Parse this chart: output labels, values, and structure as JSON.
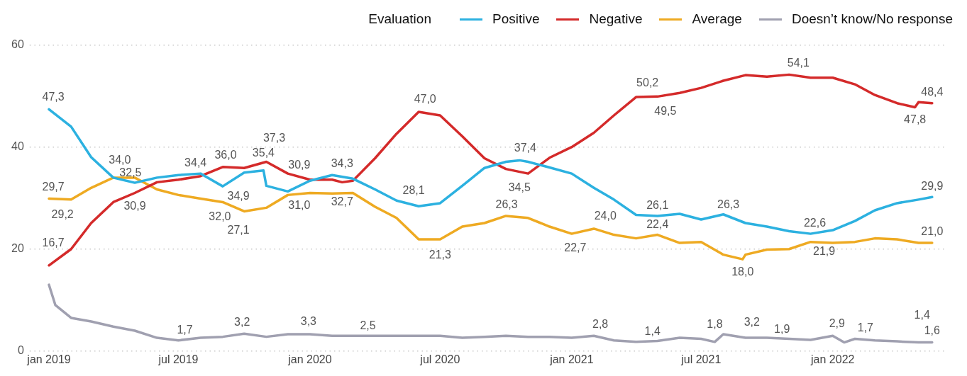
{
  "chart_data": {
    "type": "line",
    "legend_title": "Evaluation",
    "legend": "top right",
    "grid": "y",
    "marker": "none",
    "line_style": "solid",
    "xlim": [
      "2018-12-05",
      "2022-06-10"
    ],
    "xticks": [
      {
        "value": "2019-01-01",
        "label": "jan 2019"
      },
      {
        "value": "2019-07-01",
        "label": "jul 2019"
      },
      {
        "value": "2020-01-01",
        "label": "jan 2020"
      },
      {
        "value": "2020-07-01",
        "label": "jul 2020"
      },
      {
        "value": "2021-01-01",
        "label": "jan 2021"
      },
      {
        "value": "2021-07-01",
        "label": "jul 2021"
      },
      {
        "value": "2022-01-01",
        "label": "jan 2022"
      }
    ],
    "ylim": [
      0,
      60
    ],
    "yticks": [
      0,
      20,
      40,
      60
    ],
    "series": [
      {
        "name": "Positive",
        "color": "#2cb1e0",
        "x": [
          "2019-01",
          "2019-02",
          "2019-03",
          "2019-04",
          "2019-05",
          "2019-06",
          "2019-07",
          "2019-08",
          "2019-09",
          "2019-10",
          "2019-10-28",
          "2019-11",
          "2019-12",
          "2020-01",
          "2020-02",
          "2020-03",
          "2020-04",
          "2020-05",
          "2020-06",
          "2020-07",
          "2020-08",
          "2020-09",
          "2020-10",
          "2020-10-20",
          "2020-11",
          "2020-12",
          "2021-01",
          "2021-02",
          "2021-03",
          "2021-04",
          "2021-05",
          "2021-06",
          "2021-07",
          "2021-08",
          "2021-09",
          "2021-10",
          "2021-11",
          "2021-12",
          "2022-01",
          "2022-02",
          "2022-03",
          "2022-04",
          "2022-05",
          "2022-05-20"
        ],
        "values": [
          47.4,
          44,
          38,
          34,
          33,
          34,
          34.5,
          34.8,
          32.3,
          35,
          35.4,
          32.4,
          31.3,
          33.4,
          34.5,
          33.8,
          31.7,
          29.5,
          28.4,
          29,
          32.4,
          35.9,
          37.1,
          37.4,
          37.1,
          36,
          34.8,
          32,
          29.7,
          26.7,
          26.5,
          26.9,
          25.8,
          26.8,
          25.1,
          24.4,
          23.5,
          23,
          23.7,
          25.5,
          27.6,
          29,
          29.7,
          30.2
        ]
      },
      {
        "name": "Negative",
        "color": "#d42a2a",
        "x": [
          "2019-01",
          "2019-02",
          "2019-03",
          "2019-04",
          "2019-05",
          "2019-06",
          "2019-07",
          "2019-08",
          "2019-09",
          "2019-10",
          "2019-11",
          "2019-12",
          "2020-01",
          "2020-02",
          "2020-02-15",
          "2020-03",
          "2020-04",
          "2020-05",
          "2020-06",
          "2020-07",
          "2020-08",
          "2020-09",
          "2020-10",
          "2020-11",
          "2020-12",
          "2021-01",
          "2021-02",
          "2021-03",
          "2021-04",
          "2021-05",
          "2021-06",
          "2021-07",
          "2021-08",
          "2021-09",
          "2021-10",
          "2021-11",
          "2021-12",
          "2022-01",
          "2022-02",
          "2022-03",
          "2022-04",
          "2022-04-26",
          "2022-05",
          "2022-05-20"
        ],
        "values": [
          16.8,
          20,
          25.1,
          29.2,
          31,
          33.1,
          33.6,
          34.3,
          36.1,
          35.9,
          37.1,
          34.8,
          33.6,
          33.6,
          33.1,
          33.4,
          37.8,
          42.6,
          46.9,
          46.2,
          42.1,
          37.8,
          35.7,
          34.8,
          37.9,
          40,
          42.8,
          46.2,
          49.8,
          49.9,
          50.6,
          51.6,
          53,
          54.1,
          53.8,
          54.2,
          53.6,
          53.6,
          52.3,
          50.2,
          48.6,
          47.8,
          48.8,
          48.6
        ]
      },
      {
        "name": "Average",
        "color": "#eeaa22",
        "x": [
          "2019-01",
          "2019-02",
          "2019-03",
          "2019-04",
          "2019-05",
          "2019-06",
          "2019-07",
          "2019-08",
          "2019-09",
          "2019-10",
          "2019-11",
          "2019-12",
          "2020-01",
          "2020-02",
          "2020-03",
          "2020-04",
          "2020-05",
          "2020-06",
          "2020-07",
          "2020-08",
          "2020-09",
          "2020-10",
          "2020-11",
          "2020-12",
          "2021-01",
          "2021-02",
          "2021-03",
          "2021-04",
          "2021-05",
          "2021-06",
          "2021-07",
          "2021-08",
          "2021-08-28",
          "2021-09",
          "2021-10",
          "2021-11",
          "2021-12",
          "2022-01",
          "2022-02",
          "2022-03",
          "2022-04",
          "2022-05",
          "2022-05-20"
        ],
        "values": [
          29.9,
          29.7,
          32,
          34,
          34,
          31.7,
          30.6,
          29.9,
          29.2,
          27.4,
          28.1,
          30.6,
          31,
          30.9,
          31,
          28.3,
          26.1,
          21.9,
          21.9,
          24.4,
          25.1,
          26.5,
          26.1,
          24.4,
          23,
          24,
          22.8,
          22.1,
          22.8,
          21.2,
          21.4,
          18.9,
          18.0,
          18.9,
          19.9,
          20,
          21.4,
          21.2,
          21.4,
          22.1,
          21.9,
          21.2,
          21.2
        ]
      },
      {
        "name": "Doesn’t know/No response",
        "color": "#a0a0b0",
        "x": [
          "2019-01",
          "2019-01-10",
          "2019-02",
          "2019-03",
          "2019-04",
          "2019-05",
          "2019-06",
          "2019-07",
          "2019-08",
          "2019-09",
          "2019-10",
          "2019-11",
          "2019-12",
          "2020-01",
          "2020-02",
          "2020-03",
          "2020-04",
          "2020-05",
          "2020-06",
          "2020-07",
          "2020-08",
          "2020-09",
          "2020-10",
          "2020-11",
          "2020-12",
          "2021-01",
          "2021-02",
          "2021-03",
          "2021-04",
          "2021-05",
          "2021-06",
          "2021-07",
          "2021-07-20",
          "2021-08",
          "2021-09",
          "2021-10",
          "2021-11",
          "2021-12",
          "2022-01",
          "2022-01-17",
          "2022-02",
          "2022-03",
          "2022-04",
          "2022-05",
          "2022-05-20"
        ],
        "values": [
          13,
          9,
          6.5,
          5.8,
          4.8,
          4,
          2.6,
          2.1,
          2.6,
          2.8,
          3.4,
          2.8,
          3.3,
          3.3,
          3,
          3,
          3,
          3,
          3,
          3,
          2.6,
          2.8,
          3,
          2.8,
          2.8,
          2.6,
          3,
          2.1,
          1.8,
          2,
          2.6,
          2.4,
          1.8,
          3.3,
          2.6,
          2.6,
          2.4,
          2.2,
          3,
          1.7,
          2.4,
          2.1,
          1.9,
          1.7,
          1.7
        ]
      }
    ],
    "annotations": [
      {
        "text": "47,3",
        "x": "2019-01-07",
        "y": 47.3
      },
      {
        "text": "29,7",
        "x": "2019-01-07",
        "y": 29.7
      },
      {
        "text": "29,2",
        "x": "2019-01-20",
        "y": 29.2
      },
      {
        "text": "16,7",
        "x": "2019-01-07",
        "y": 16.7
      },
      {
        "text": "34,0",
        "x": "2019-04-10",
        "y": 34.0
      },
      {
        "text": "30,9",
        "x": "2019-05-01",
        "y": 30.9
      },
      {
        "text": "32,5",
        "x": "2019-04-25",
        "y": 32.5
      },
      {
        "text": "34,4",
        "x": "2019-07-25",
        "y": 34.4
      },
      {
        "text": "36,0",
        "x": "2019-09-05",
        "y": 36.0
      },
      {
        "text": "34,9",
        "x": "2019-09-23",
        "y": 34.9
      },
      {
        "text": "35,4",
        "x": "2019-10-28",
        "y": 35.4
      },
      {
        "text": "37,3",
        "x": "2019-11-12",
        "y": 37.3
      },
      {
        "text": "31,0",
        "x": "2019-12-17",
        "y": 31.0
      },
      {
        "text": "30,9",
        "x": "2019-12-17",
        "y": 30.9
      },
      {
        "text": "32,0",
        "x": "2019-08-28",
        "y": 32.0
      },
      {
        "text": "27,1",
        "x": "2019-09-23",
        "y": 27.1
      },
      {
        "text": "1,7",
        "x": "2019-07-10",
        "y": 1.7
      },
      {
        "text": "3,2",
        "x": "2019-09-28",
        "y": 3.2
      },
      {
        "text": "3,3",
        "x": "2019-12-30",
        "y": 3.3
      },
      {
        "text": "34,3",
        "x": "2020-02-15",
        "y": 34.3
      },
      {
        "text": "32,7",
        "x": "2020-02-15",
        "y": 32.7
      },
      {
        "text": "47,0",
        "x": "2020-06-10",
        "y": 47.0
      },
      {
        "text": "28,1",
        "x": "2020-05-25",
        "y": 28.1
      },
      {
        "text": "21,3",
        "x": "2020-07-01",
        "y": 21.3
      },
      {
        "text": "37,4",
        "x": "2020-10-28",
        "y": 37.4
      },
      {
        "text": "34,5",
        "x": "2020-10-20",
        "y": 34.5
      },
      {
        "text": "26,3",
        "x": "2020-10-02",
        "y": 26.3
      },
      {
        "text": "24,0",
        "x": "2021-02-17",
        "y": 24.0
      },
      {
        "text": "22,7",
        "x": "2021-01-06",
        "y": 22.7
      },
      {
        "text": "2,5",
        "x": "2020-03-22",
        "y": 2.5
      },
      {
        "text": "2,8",
        "x": "2021-02-10",
        "y": 2.8
      },
      {
        "text": "50,2",
        "x": "2021-04-17",
        "y": 50.2
      },
      {
        "text": "49,5",
        "x": "2021-05-12",
        "y": 49.5
      },
      {
        "text": "54,1",
        "x": "2021-11-14",
        "y": 54.1
      },
      {
        "text": "47,8",
        "x": "2022-04-26",
        "y": 47.8
      },
      {
        "text": "48,4",
        "x": "2022-05-20",
        "y": 48.4
      },
      {
        "text": "29,9",
        "x": "2022-05-20",
        "y": 29.9
      },
      {
        "text": "21,0",
        "x": "2022-05-20",
        "y": 21.0
      },
      {
        "text": "1,6",
        "x": "2022-05-20",
        "y": 1.6
      },
      {
        "text": "1,4",
        "x": "2022-05-06",
        "y": 1.4
      },
      {
        "text": "26,3",
        "x": "2021-08-08",
        "y": 26.3
      },
      {
        "text": "26,1",
        "x": "2021-05-01",
        "y": 26.1
      },
      {
        "text": "22,4",
        "x": "2021-05-01",
        "y": 22.4
      },
      {
        "text": "18,0",
        "x": "2021-08-28",
        "y": 18.0
      },
      {
        "text": "21,9",
        "x": "2021-12-20",
        "y": 21.9
      },
      {
        "text": "22,6",
        "x": "2021-12-07",
        "y": 22.6
      },
      {
        "text": "1,4",
        "x": "2021-04-24",
        "y": 1.4
      },
      {
        "text": "1,8",
        "x": "2021-07-20",
        "y": 1.8
      },
      {
        "text": "3,2",
        "x": "2021-09-10",
        "y": 3.2
      },
      {
        "text": "1,9",
        "x": "2021-10-22",
        "y": 1.9
      },
      {
        "text": "2,9",
        "x": "2022-01-07",
        "y": 2.9
      },
      {
        "text": "1,7",
        "x": "2022-01-17",
        "y": 1.7
      }
    ]
  }
}
